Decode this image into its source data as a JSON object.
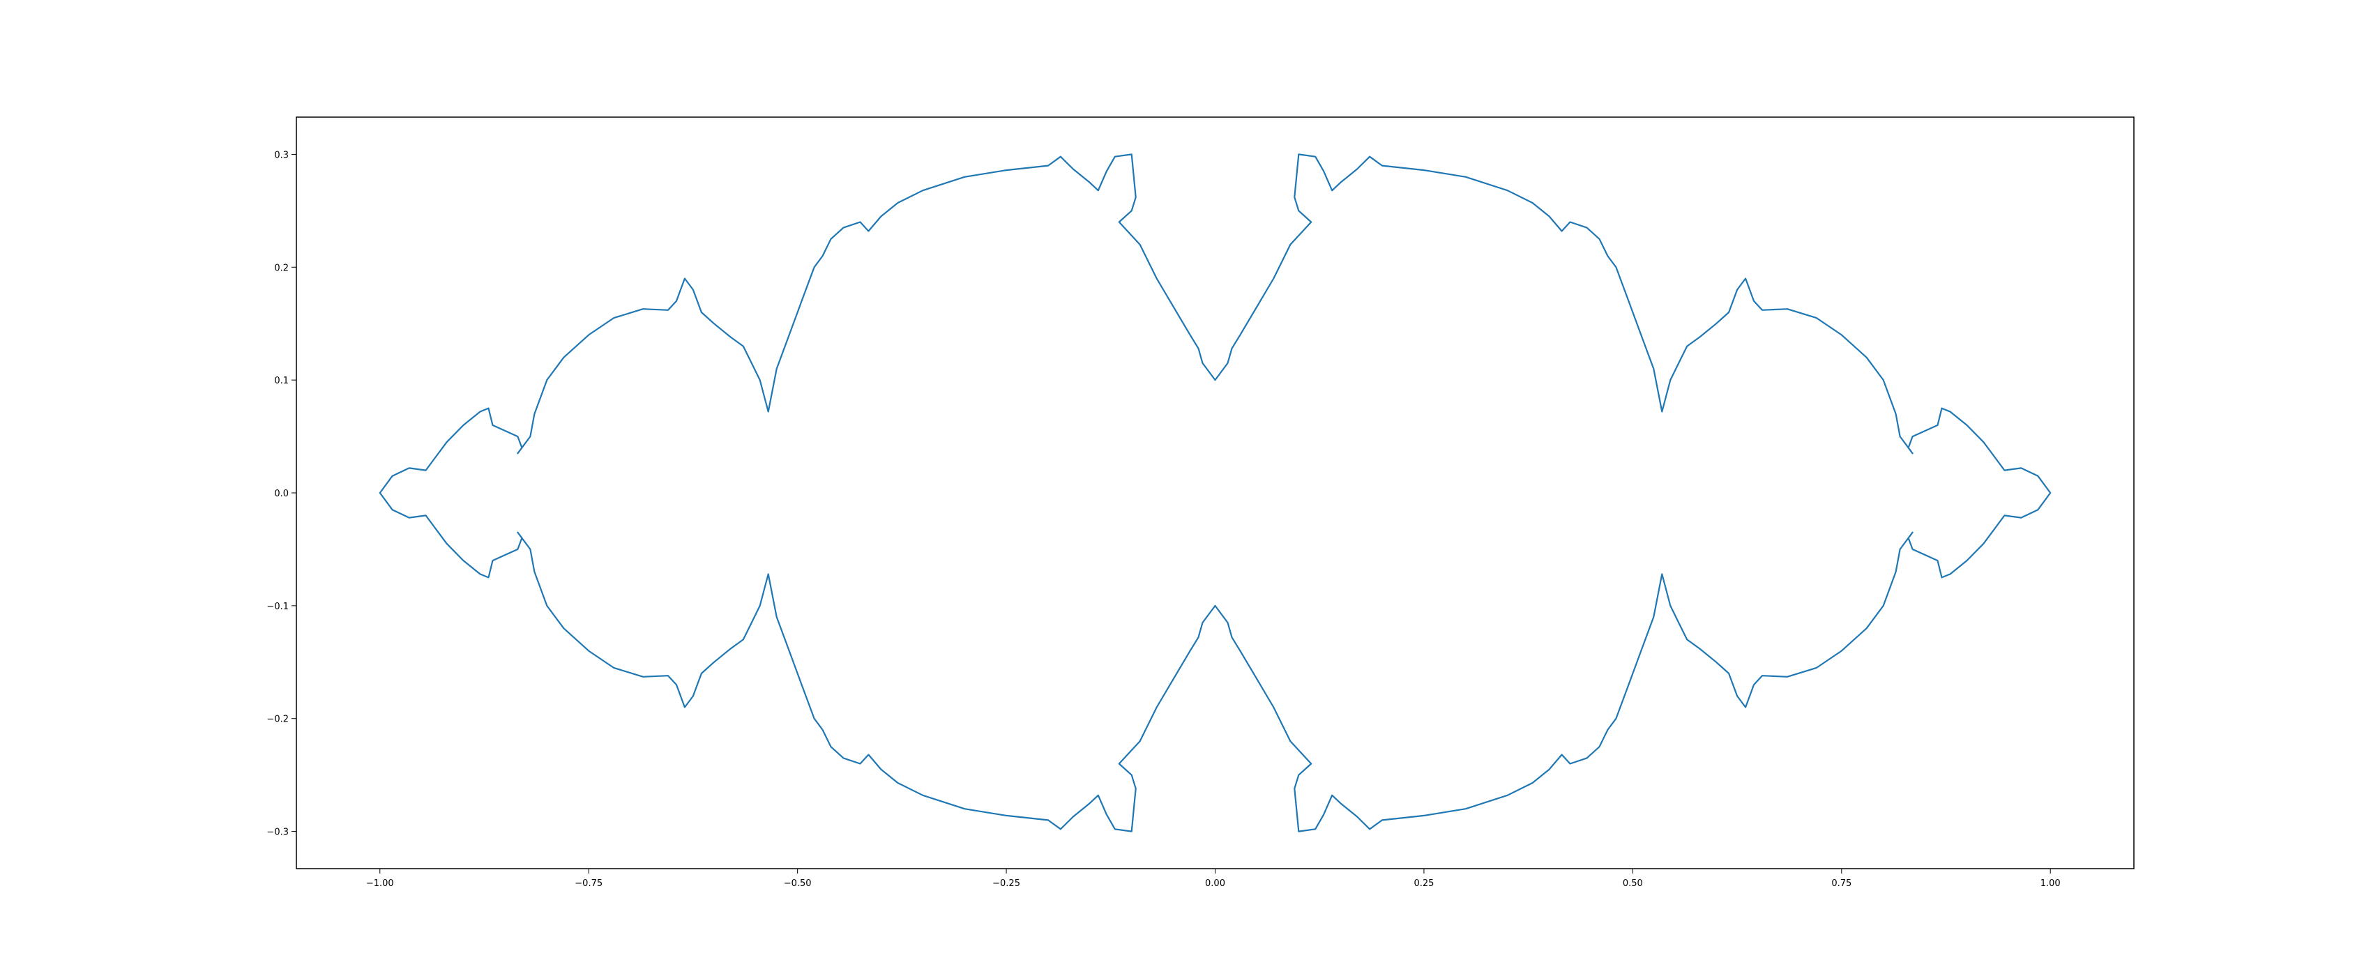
{
  "chart_data": {
    "type": "line",
    "title": "",
    "xlabel": "",
    "ylabel": "",
    "xlim": [
      -1.1,
      1.1
    ],
    "ylim": [
      -0.333,
      0.333
    ],
    "grid": false,
    "legend": "none",
    "series": [
      {
        "color": "#1f77b4",
        "shape": "closed fractal outline symmetric about both axes",
        "left_tip": [
          -1.0,
          0.0
        ],
        "right_tip": [
          1.0,
          0.0
        ],
        "upper_center_cusp": [
          0.0,
          0.1
        ],
        "lower_center_cusp": [
          0.0,
          -0.1
        ],
        "points": [
          [
            -1.0,
            0.0
          ],
          [
            -0.985,
            0.015
          ],
          [
            -0.965,
            0.022
          ],
          [
            -0.945,
            0.02
          ],
          [
            -0.935,
            0.03
          ],
          [
            -0.92,
            0.045
          ],
          [
            -0.9,
            0.06
          ],
          [
            -0.88,
            0.072
          ],
          [
            -0.87,
            0.075
          ],
          [
            -0.865,
            0.06
          ],
          [
            -0.85,
            0.055
          ],
          [
            -0.835,
            0.05
          ],
          [
            -0.83,
            0.04
          ],
          [
            -0.835,
            0.035
          ],
          [
            -0.82,
            0.05
          ],
          [
            -0.815,
            0.07
          ],
          [
            -0.8,
            0.1
          ],
          [
            -0.78,
            0.12
          ],
          [
            -0.75,
            0.14
          ],
          [
            -0.72,
            0.155
          ],
          [
            -0.685,
            0.163
          ],
          [
            -0.655,
            0.162
          ],
          [
            -0.645,
            0.17
          ],
          [
            -0.635,
            0.19
          ],
          [
            -0.625,
            0.18
          ],
          [
            -0.615,
            0.16
          ],
          [
            -0.6,
            0.15
          ],
          [
            -0.58,
            0.138
          ],
          [
            -0.565,
            0.13
          ],
          [
            -0.555,
            0.115
          ],
          [
            -0.545,
            0.1
          ],
          [
            -0.535,
            0.072
          ],
          [
            -0.525,
            0.11
          ],
          [
            -0.51,
            0.14
          ],
          [
            -0.495,
            0.17
          ],
          [
            -0.48,
            0.2
          ],
          [
            -0.47,
            0.21
          ],
          [
            -0.46,
            0.225
          ],
          [
            -0.445,
            0.235
          ],
          [
            -0.425,
            0.24
          ],
          [
            -0.415,
            0.232
          ],
          [
            -0.4,
            0.245
          ],
          [
            -0.38,
            0.257
          ],
          [
            -0.35,
            0.268
          ],
          [
            -0.3,
            0.28
          ],
          [
            -0.25,
            0.286
          ],
          [
            -0.2,
            0.29
          ],
          [
            -0.185,
            0.298
          ],
          [
            -0.17,
            0.287
          ],
          [
            -0.15,
            0.275
          ],
          [
            -0.14,
            0.268
          ],
          [
            -0.13,
            0.285
          ],
          [
            -0.12,
            0.298
          ],
          [
            -0.1,
            0.3
          ],
          [
            -0.095,
            0.262
          ],
          [
            -0.1,
            0.25
          ],
          [
            -0.115,
            0.24
          ],
          [
            -0.09,
            0.22
          ],
          [
            -0.07,
            0.19
          ],
          [
            -0.05,
            0.165
          ],
          [
            -0.03,
            0.14
          ],
          [
            -0.02,
            0.128
          ],
          [
            -0.015,
            0.115
          ],
          [
            0.0,
            0.1
          ],
          [
            0.015,
            0.115
          ],
          [
            0.02,
            0.128
          ],
          [
            0.03,
            0.14
          ],
          [
            0.05,
            0.165
          ],
          [
            0.07,
            0.19
          ],
          [
            0.09,
            0.22
          ],
          [
            0.115,
            0.24
          ],
          [
            0.1,
            0.25
          ],
          [
            0.095,
            0.262
          ],
          [
            0.1,
            0.3
          ],
          [
            0.12,
            0.298
          ],
          [
            0.13,
            0.285
          ],
          [
            0.14,
            0.268
          ],
          [
            0.15,
            0.275
          ],
          [
            0.17,
            0.287
          ],
          [
            0.185,
            0.298
          ],
          [
            0.2,
            0.29
          ],
          [
            0.25,
            0.286
          ],
          [
            0.3,
            0.28
          ],
          [
            0.35,
            0.268
          ],
          [
            0.38,
            0.257
          ],
          [
            0.4,
            0.245
          ],
          [
            0.415,
            0.232
          ],
          [
            0.425,
            0.24
          ],
          [
            0.445,
            0.235
          ],
          [
            0.46,
            0.225
          ],
          [
            0.47,
            0.21
          ],
          [
            0.48,
            0.2
          ],
          [
            0.495,
            0.17
          ],
          [
            0.51,
            0.14
          ],
          [
            0.525,
            0.11
          ],
          [
            0.535,
            0.072
          ],
          [
            0.545,
            0.1
          ],
          [
            0.555,
            0.115
          ],
          [
            0.565,
            0.13
          ],
          [
            0.58,
            0.138
          ],
          [
            0.6,
            0.15
          ],
          [
            0.615,
            0.16
          ],
          [
            0.625,
            0.18
          ],
          [
            0.635,
            0.19
          ],
          [
            0.645,
            0.17
          ],
          [
            0.655,
            0.162
          ],
          [
            0.685,
            0.163
          ],
          [
            0.72,
            0.155
          ],
          [
            0.75,
            0.14
          ],
          [
            0.78,
            0.12
          ],
          [
            0.8,
            0.1
          ],
          [
            0.815,
            0.07
          ],
          [
            0.82,
            0.05
          ],
          [
            0.835,
            0.035
          ],
          [
            0.83,
            0.04
          ],
          [
            0.835,
            0.05
          ],
          [
            0.85,
            0.055
          ],
          [
            0.865,
            0.06
          ],
          [
            0.87,
            0.075
          ],
          [
            0.88,
            0.072
          ],
          [
            0.9,
            0.06
          ],
          [
            0.92,
            0.045
          ],
          [
            0.935,
            0.03
          ],
          [
            0.945,
            0.02
          ],
          [
            0.965,
            0.022
          ],
          [
            0.985,
            0.015
          ],
          [
            1.0,
            0.0
          ]
        ]
      }
    ],
    "xticks": [
      {
        "value": -1.0,
        "label": "−1.00"
      },
      {
        "value": -0.75,
        "label": "−0.75"
      },
      {
        "value": -0.5,
        "label": "−0.50"
      },
      {
        "value": -0.25,
        "label": "−0.25"
      },
      {
        "value": 0.0,
        "label": "0.00"
      },
      {
        "value": 0.25,
        "label": "0.25"
      },
      {
        "value": 0.5,
        "label": "0.50"
      },
      {
        "value": 0.75,
        "label": "0.75"
      },
      {
        "value": 1.0,
        "label": "1.00"
      }
    ],
    "yticks": [
      {
        "value": 0.3,
        "label": "0.3"
      },
      {
        "value": 0.2,
        "label": "0.2"
      },
      {
        "value": 0.1,
        "label": "0.1"
      },
      {
        "value": 0.0,
        "label": "0.0"
      },
      {
        "value": -0.1,
        "label": "−0.1"
      },
      {
        "value": -0.2,
        "label": "−0.2"
      },
      {
        "value": -0.3,
        "label": "−0.3"
      }
    ]
  }
}
